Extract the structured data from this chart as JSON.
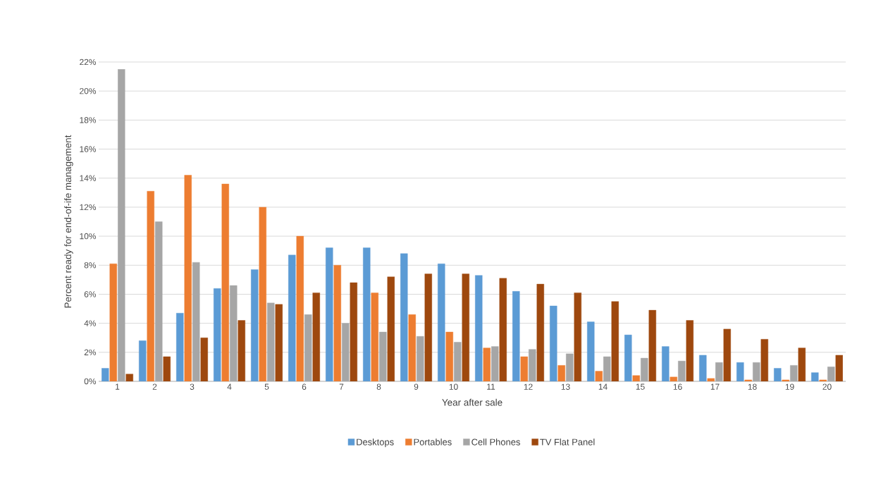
{
  "chart_data": {
    "type": "bar",
    "xlabel": "Year after sale",
    "ylabel": "Percent ready for end-of-ife management",
    "categories": [
      "1",
      "2",
      "3",
      "4",
      "5",
      "6",
      "7",
      "8",
      "9",
      "10",
      "11",
      "12",
      "13",
      "14",
      "15",
      "16",
      "17",
      "18",
      "19",
      "20"
    ],
    "series": [
      {
        "name": "Desktops",
        "color": "#5b9bd5",
        "values": [
          0.9,
          2.8,
          4.7,
          6.4,
          7.7,
          8.7,
          9.2,
          9.2,
          8.8,
          8.1,
          7.3,
          6.2,
          5.2,
          4.1,
          3.2,
          2.4,
          1.8,
          1.3,
          0.9,
          0.6
        ]
      },
      {
        "name": "Portables",
        "color": "#ed7d31",
        "values": [
          8.1,
          13.1,
          14.2,
          13.6,
          12.0,
          10.0,
          8.0,
          6.1,
          4.6,
          3.4,
          2.3,
          1.7,
          1.1,
          0.7,
          0.4,
          0.3,
          0.2,
          0.1,
          0.1,
          0.1
        ]
      },
      {
        "name": "Cell Phones",
        "color": "#a6a6a6",
        "values": [
          21.5,
          11.0,
          8.2,
          6.6,
          5.4,
          4.6,
          4.0,
          3.4,
          3.1,
          2.7,
          2.4,
          2.2,
          1.9,
          1.7,
          1.6,
          1.4,
          1.3,
          1.3,
          1.1,
          1.0
        ]
      },
      {
        "name": "TV Flat Panel",
        "color": "#9e480e",
        "values": [
          0.5,
          1.7,
          3.0,
          4.2,
          5.3,
          6.1,
          6.8,
          7.2,
          7.4,
          7.4,
          7.1,
          6.7,
          6.1,
          5.5,
          4.9,
          4.2,
          3.6,
          2.9,
          2.3,
          1.8
        ]
      }
    ],
    "ylim": [
      0,
      22
    ],
    "yticks": [
      {
        "value": 0,
        "label": "0%"
      },
      {
        "value": 2,
        "label": "2%"
      },
      {
        "value": 4,
        "label": "4%"
      },
      {
        "value": 6,
        "label": "6%"
      },
      {
        "value": 8,
        "label": "8%"
      },
      {
        "value": 10,
        "label": "10%"
      },
      {
        "value": 12,
        "label": "12%"
      },
      {
        "value": 14,
        "label": "14%"
      },
      {
        "value": 16,
        "label": "16%"
      },
      {
        "value": 18,
        "label": "18%"
      },
      {
        "value": 20,
        "label": "20%"
      },
      {
        "value": 22,
        "label": "22%"
      }
    ],
    "grid": "y",
    "legend": "bottom"
  }
}
